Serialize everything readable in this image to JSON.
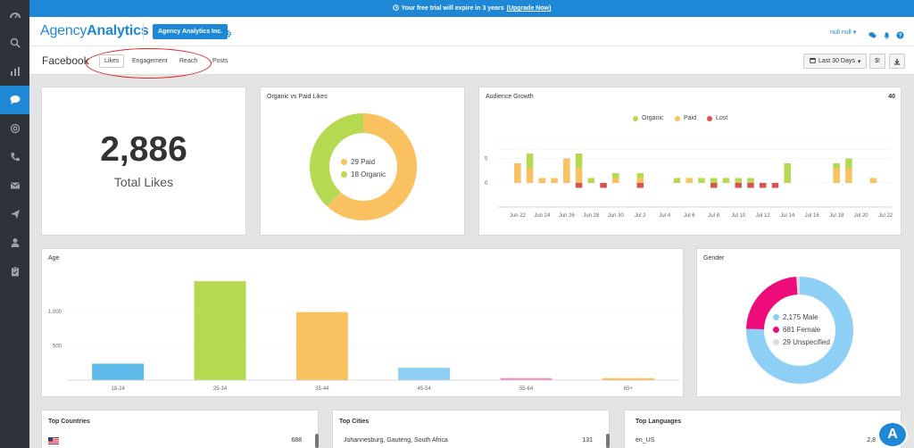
{
  "banner": {
    "text": "Your free trial will expire in 3 years",
    "link_text": "(Upgrade Now)"
  },
  "header": {
    "logo_light": "Agency",
    "logo_bold": "Analytics",
    "account_button": "Agency Analytics Inc.",
    "user_menu": "null null"
  },
  "subheader": {
    "title": "Facebook",
    "tabs": [
      {
        "label": "Likes",
        "active": true
      },
      {
        "label": "Engagement",
        "active": false
      },
      {
        "label": "Reach",
        "active": false
      },
      {
        "label": "Posts",
        "active": false
      }
    ],
    "date_range": "Last 30 Days",
    "export_label": "$!"
  },
  "sidebar": {
    "items": [
      "dashboard-icon",
      "search-icon",
      "chart-icon",
      "chat-icon",
      "at-icon",
      "phone-icon",
      "mail-icon",
      "send-icon",
      "user-icon",
      "clipboard-icon"
    ],
    "active_index": 3
  },
  "total_likes": {
    "value": "2,886",
    "label": "Total Likes"
  },
  "organic_vs_paid": {
    "title": "Organic vs Paid Likes",
    "legend": [
      {
        "label": "29 Paid",
        "color": "#f9c160"
      },
      {
        "label": "18 Organic",
        "color": "#b5d950"
      }
    ]
  },
  "audience_growth": {
    "title": "Audience Growth",
    "total": "40",
    "legend": [
      {
        "label": "Organic",
        "color": "#b5d950"
      },
      {
        "label": "Paid",
        "color": "#f9c160"
      },
      {
        "label": "Lost",
        "color": "#d9534f"
      }
    ]
  },
  "age": {
    "title": "Age"
  },
  "gender": {
    "title": "Gender",
    "legend": [
      {
        "label": "2,175 Male",
        "color": "#8ecff5"
      },
      {
        "label": "681 Female",
        "color": "#ee0c7a"
      },
      {
        "label": "29 Unspecified",
        "color": "#dddddd"
      }
    ]
  },
  "top_countries": {
    "title": "Top Countries",
    "rows": [
      {
        "name": "",
        "value": "688"
      }
    ]
  },
  "top_cities": {
    "title": "Top Cities",
    "rows": [
      {
        "name": "Johannesburg, Gauteng, South Africa",
        "value": "131"
      }
    ]
  },
  "top_languages": {
    "title": "Top Languages",
    "rows": [
      {
        "name": "en_US",
        "value": "2,8"
      }
    ]
  },
  "badge": {
    "text": "A"
  },
  "chart_data": [
    {
      "type": "pie",
      "title": "Organic vs Paid Likes",
      "categories": [
        "Paid",
        "Organic"
      ],
      "values": [
        29,
        18
      ],
      "colors": [
        "#f9c160",
        "#b5d950"
      ]
    },
    {
      "type": "bar",
      "title": "Audience Growth",
      "ylim": [
        -2,
        10
      ],
      "ytick_labels": [
        "5",
        "0"
      ],
      "categories": [
        "Jun 22",
        "Jun 23",
        "Jun 24",
        "Jun 25",
        "Jun 26",
        "Jun 27",
        "Jun 28",
        "Jun 29",
        "Jun 30",
        "Jul 1",
        "Jul 2",
        "Jul 3",
        "Jul 4",
        "Jul 5",
        "Jul 6",
        "Jul 7",
        "Jul 8",
        "Jul 9",
        "Jul 10",
        "Jul 11",
        "Jul 12",
        "Jul 13",
        "Jul 14",
        "Jul 15",
        "Jul 16",
        "Jul 17",
        "Jul 18",
        "Jul 19",
        "Jul 20",
        "Jul 21",
        "Jul 22"
      ],
      "xtick_labels": [
        "Jun 22",
        "Jun 24",
        "Jun 26",
        "Jun 28",
        "Jun 30",
        "Jul 2",
        "Jul 4",
        "Jul 6",
        "Jul 8",
        "Jul 10",
        "Jul 12",
        "Jul 14",
        "Jul 16",
        "Jul 18",
        "Jul 20",
        "Jul 22"
      ],
      "series": [
        {
          "name": "Paid",
          "color": "#f9c160",
          "values": [
            4,
            3,
            1,
            1,
            5,
            3,
            0,
            0,
            1,
            0,
            1,
            0,
            0,
            0,
            1,
            0,
            0,
            0,
            0,
            0,
            0,
            0,
            0,
            0,
            0,
            0,
            3,
            3,
            0,
            1,
            0
          ]
        },
        {
          "name": "Organic",
          "color": "#b5d950",
          "values": [
            0,
            3,
            0,
            0,
            0,
            3,
            1,
            0,
            1,
            0,
            1,
            0,
            0,
            1,
            0,
            1,
            1,
            1,
            1,
            1,
            0,
            0,
            4,
            0,
            0,
            0,
            1,
            2,
            0,
            0,
            0
          ]
        },
        {
          "name": "Lost",
          "color": "#d9534f",
          "values": [
            0,
            0,
            0,
            0,
            0,
            -1,
            0,
            -1,
            0,
            0,
            -1,
            0,
            0,
            0,
            0,
            0,
            -1,
            0,
            -1,
            -1,
            -1,
            -1,
            0,
            0,
            0,
            0,
            0,
            0,
            0,
            0,
            0
          ]
        }
      ]
    },
    {
      "type": "bar",
      "title": "Age",
      "categories": [
        "18-24",
        "25-34",
        "35-44",
        "45-54",
        "55-64",
        "65+"
      ],
      "values": [
        240,
        1440,
        990,
        180,
        30,
        30
      ],
      "colors": [
        "#5cb9e8",
        "#b5d950",
        "#f9c160",
        "#8ecff5",
        "#e88fc9",
        "#f9c160"
      ],
      "ylim": [
        0,
        1500
      ],
      "ytick_labels": [
        "1,000",
        "500"
      ]
    },
    {
      "type": "pie",
      "title": "Gender",
      "categories": [
        "Male",
        "Female",
        "Unspecified"
      ],
      "values": [
        2175,
        681,
        29
      ],
      "colors": [
        "#8ecff5",
        "#ee0c7a",
        "#dddddd"
      ]
    }
  ]
}
